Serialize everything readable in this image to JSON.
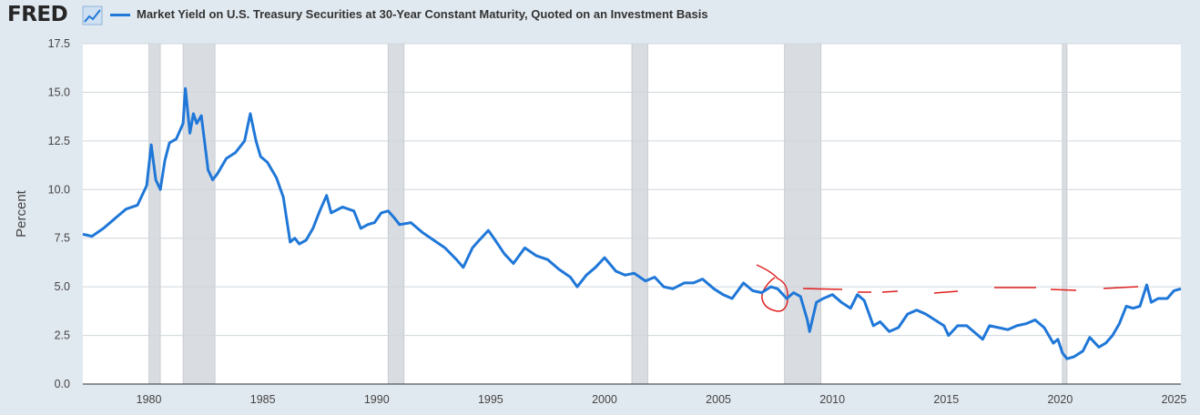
{
  "header": {
    "logo_text": "FRED",
    "logo_icon": "line-chart-icon",
    "series_title": "Market Yield on U.S. Treasury Securities at 30-Year Constant Maturity, Quoted on an Investment Basis"
  },
  "colors": {
    "series": "#1f77d8",
    "recession": "#d9dde2",
    "annotation": "#e02020",
    "plot_background": "#ffffff",
    "page_background": "#e1e9f0"
  },
  "chart_data": {
    "type": "line",
    "title": "Market Yield on U.S. Treasury Securities at 30-Year Constant Maturity, Quoted on an Investment Basis",
    "xlabel": "",
    "ylabel": "Percent",
    "xlim": [
      1977.1,
      2025.3
    ],
    "ylim": [
      0,
      17.5
    ],
    "grid": true,
    "legend": "top-left",
    "x_ticks": [
      "1980",
      "1985",
      "1990",
      "1995",
      "2000",
      "2005",
      "2010",
      "2015",
      "2020",
      "2025"
    ],
    "y_ticks": [
      "0.0",
      "2.5",
      "5.0",
      "7.5",
      "10.0",
      "12.5",
      "15.0",
      "17.5"
    ],
    "recessions": [
      [
        1980.0,
        1980.5
      ],
      [
        1981.5,
        1982.9
      ],
      [
        1990.5,
        1991.2
      ],
      [
        2001.2,
        2001.9
      ],
      [
        2007.9,
        2009.5
      ],
      [
        2020.1,
        2020.3
      ]
    ],
    "series": [
      {
        "name": "Market Yield on U.S. Treasury Securities at 30-Year Constant Maturity, Quoted on an Investment Basis",
        "x": [
          1977.1,
          1977.5,
          1978.0,
          1978.5,
          1979.0,
          1979.5,
          1979.9,
          1980.1,
          1980.3,
          1980.5,
          1980.7,
          1980.9,
          1981.2,
          1981.5,
          1981.6,
          1981.8,
          1981.95,
          1982.1,
          1982.3,
          1982.6,
          1982.8,
          1983.0,
          1983.4,
          1983.8,
          1984.2,
          1984.45,
          1984.7,
          1984.9,
          1985.2,
          1985.6,
          1985.9,
          1986.2,
          1986.4,
          1986.6,
          1986.9,
          1987.2,
          1987.5,
          1987.8,
          1988.0,
          1988.5,
          1989.0,
          1989.3,
          1989.6,
          1989.9,
          1990.2,
          1990.5,
          1990.8,
          1991.0,
          1991.5,
          1992.0,
          1992.5,
          1993.0,
          1993.5,
          1993.8,
          1994.2,
          1994.5,
          1994.9,
          1995.2,
          1995.6,
          1996.0,
          1996.5,
          1997.0,
          1997.5,
          1998.0,
          1998.5,
          1998.8,
          1999.2,
          1999.6,
          2000.0,
          2000.5,
          2000.9,
          2001.3,
          2001.8,
          2002.2,
          2002.6,
          2003.0,
          2003.5,
          2003.9,
          2004.3,
          2004.8,
          2005.2,
          2005.6,
          2006.1,
          2006.5,
          2006.9,
          2007.3,
          2007.6,
          2008.0,
          2008.3,
          2008.6,
          2008.9,
          2009.0,
          2009.3,
          2009.6,
          2010.0,
          2010.4,
          2010.8,
          2011.1,
          2011.4,
          2011.8,
          2012.1,
          2012.5,
          2012.9,
          2013.3,
          2013.7,
          2014.1,
          2014.5,
          2014.9,
          2015.1,
          2015.5,
          2015.9,
          2016.3,
          2016.6,
          2016.9,
          2017.3,
          2017.7,
          2018.1,
          2018.5,
          2018.9,
          2019.3,
          2019.7,
          2019.9,
          2020.1,
          2020.3,
          2020.6,
          2021.0,
          2021.3,
          2021.7,
          2022.0,
          2022.3,
          2022.6,
          2022.9,
          2023.2,
          2023.5,
          2023.8,
          2024.0,
          2024.3,
          2024.7,
          2025.0,
          2025.3
        ],
        "values": [
          7.7,
          7.6,
          8.0,
          8.5,
          9.0,
          9.2,
          10.2,
          12.3,
          10.5,
          10.0,
          11.5,
          12.4,
          12.6,
          13.4,
          15.2,
          12.9,
          13.9,
          13.4,
          13.8,
          11.0,
          10.5,
          10.8,
          11.6,
          11.9,
          12.5,
          13.9,
          12.5,
          11.7,
          11.4,
          10.6,
          9.6,
          7.3,
          7.5,
          7.2,
          7.4,
          8.0,
          8.9,
          9.7,
          8.8,
          9.1,
          8.9,
          8.0,
          8.2,
          8.3,
          8.8,
          8.9,
          8.5,
          8.2,
          8.3,
          7.8,
          7.4,
          7.0,
          6.4,
          6.0,
          7.0,
          7.4,
          7.9,
          7.4,
          6.7,
          6.2,
          7.0,
          6.6,
          6.4,
          5.9,
          5.5,
          5.0,
          5.6,
          6.0,
          6.5,
          5.8,
          5.6,
          5.7,
          5.3,
          5.5,
          5.0,
          4.9,
          5.2,
          5.2,
          5.4,
          4.9,
          4.6,
          4.4,
          5.2,
          4.8,
          4.7,
          5.0,
          4.9,
          4.4,
          4.7,
          4.5,
          3.3,
          2.7,
          4.2,
          4.4,
          4.6,
          4.2,
          3.9,
          4.6,
          4.3,
          3.0,
          3.2,
          2.7,
          2.9,
          3.6,
          3.8,
          3.6,
          3.3,
          3.0,
          2.5,
          3.0,
          3.0,
          2.6,
          2.3,
          3.0,
          2.9,
          2.8,
          3.0,
          3.1,
          3.3,
          2.9,
          2.1,
          2.3,
          1.6,
          1.3,
          1.4,
          1.7,
          2.4,
          1.9,
          2.1,
          2.5,
          3.1,
          4.0,
          3.9,
          4.0,
          5.1,
          4.2,
          4.4,
          4.4,
          4.8,
          4.9
        ]
      }
    ]
  }
}
